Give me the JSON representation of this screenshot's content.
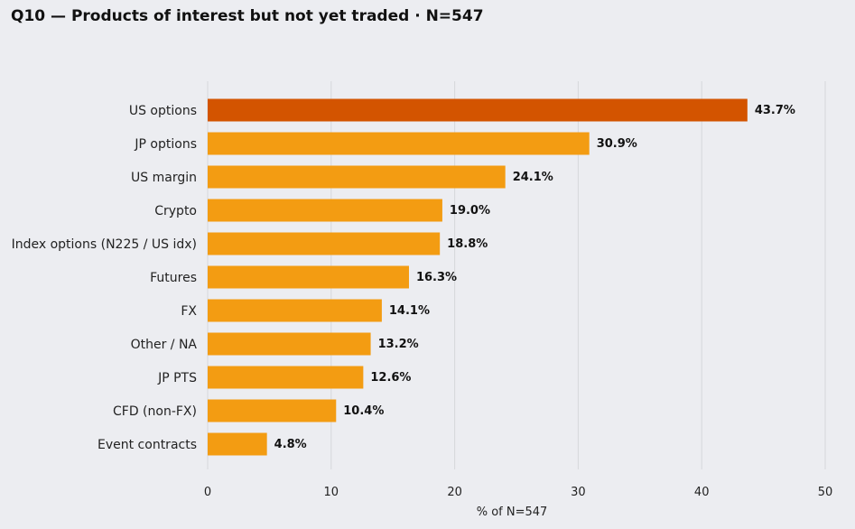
{
  "title": "Q10 — Products of interest but not yet traded · N=547",
  "chart_data": {
    "type": "bar",
    "orientation": "horizontal",
    "title": "Q10 — Products of interest but not yet traded · N=547",
    "xlabel": "% of N=547",
    "ylabel": "",
    "xlim": [
      0,
      50
    ],
    "xticks": [
      0,
      10,
      20,
      30,
      40,
      50
    ],
    "categories": [
      "US options",
      "JP options",
      "US margin",
      "Crypto",
      "Index options (N225 / US idx)",
      "Futures",
      "FX",
      "Other / NA",
      "JP PTS",
      "CFD (non-FX)",
      "Event contracts"
    ],
    "values": [
      43.7,
      30.9,
      24.1,
      19.0,
      18.8,
      16.3,
      14.1,
      13.2,
      12.6,
      10.4,
      4.8
    ],
    "value_labels": [
      "43.7%",
      "30.9%",
      "24.1%",
      "19.0%",
      "18.8%",
      "16.3%",
      "14.1%",
      "13.2%",
      "12.6%",
      "10.4%",
      "4.8%"
    ],
    "grid": "vertical",
    "highlight_color": "#d35400",
    "bar_color": "#f39c12",
    "highlight_index": 0
  }
}
